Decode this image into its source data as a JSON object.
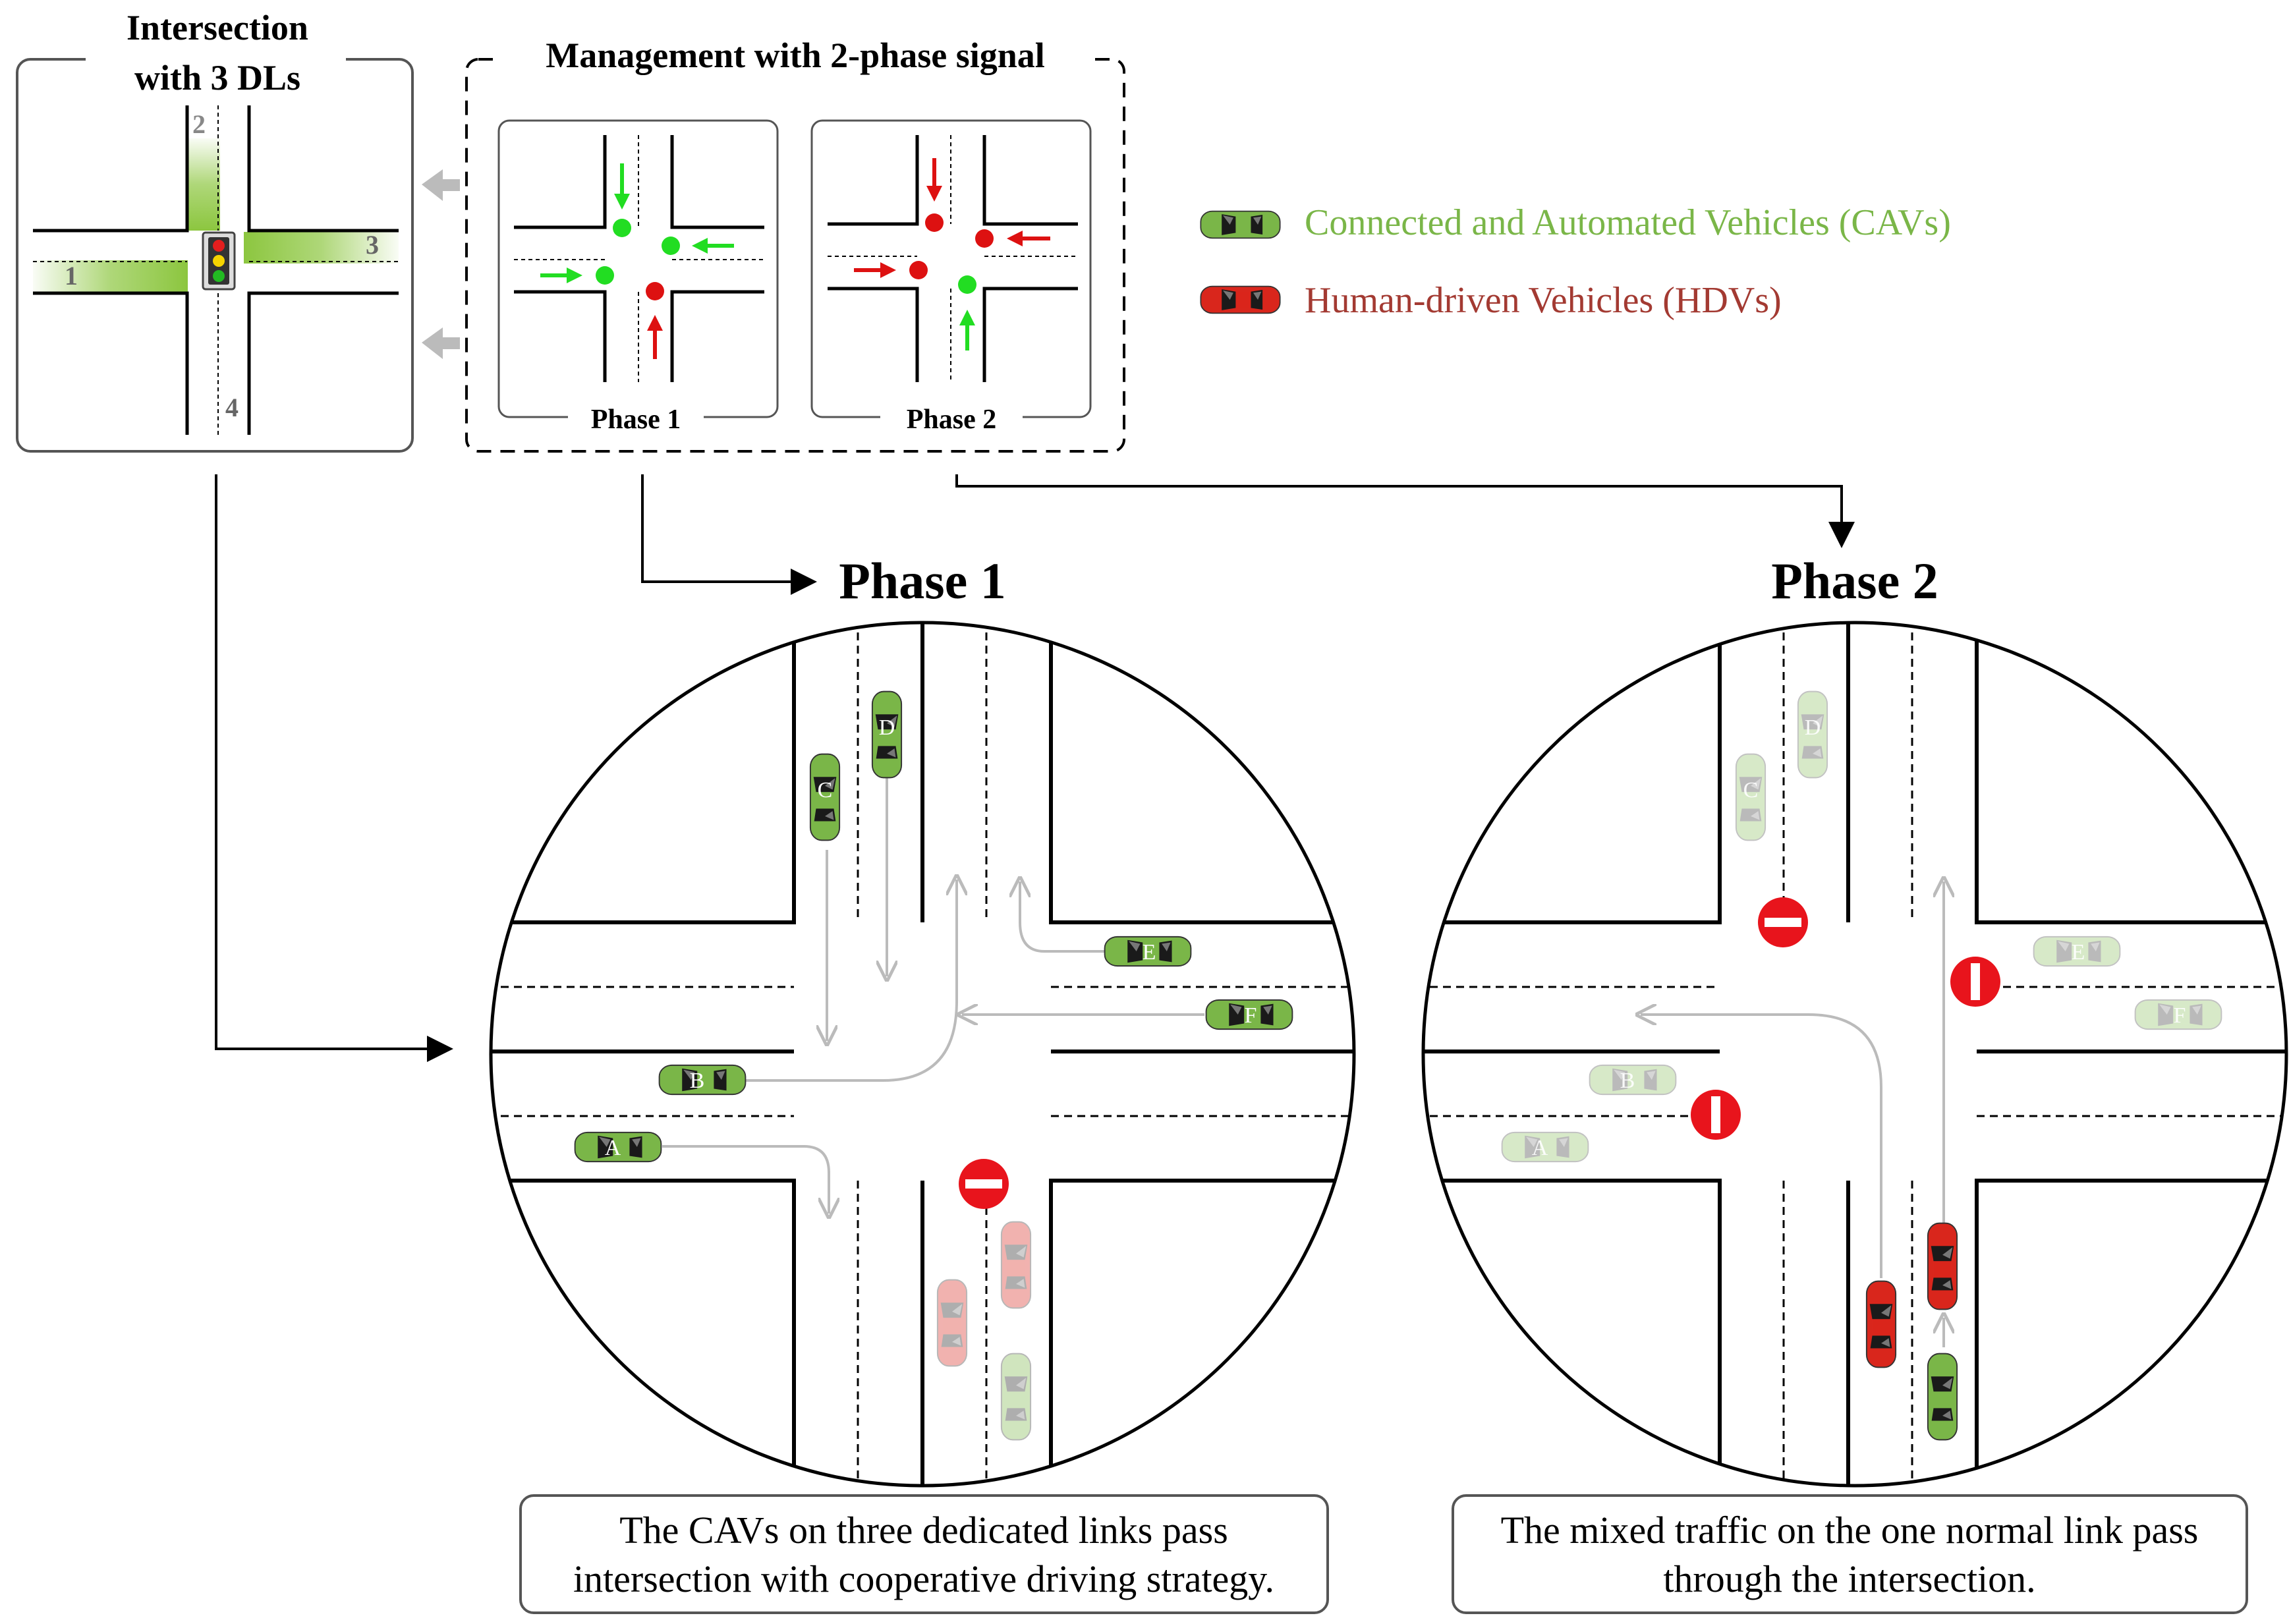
{
  "overview": {
    "title_line1": "Intersection",
    "title_line2": "with 3 DLs",
    "link_labels": [
      "1",
      "2",
      "3",
      "4"
    ]
  },
  "management": {
    "title": "Management with 2-phase signal",
    "phase1_label": "Phase 1",
    "phase2_label": "Phase 2"
  },
  "legend": {
    "cav_label": "Connected and Automated Vehicles (CAVs)",
    "hdv_label": "Human-driven Vehicles (HDVs)",
    "cav_color": "#7ab648",
    "hdv_color": "#d9261c"
  },
  "phase1": {
    "heading": "Phase 1",
    "caption_line1": "The CAVs on three dedicated links pass",
    "caption_line2": "intersection with cooperative driving strategy.",
    "vehicle_labels": [
      "A",
      "B",
      "C",
      "D",
      "E",
      "F"
    ]
  },
  "phase2": {
    "heading": "Phase 2",
    "caption_line1": "The mixed traffic on the one normal link pass",
    "caption_line2": "through the intersection.",
    "vehicle_labels": [
      "A",
      "B",
      "C",
      "D",
      "E",
      "F"
    ]
  },
  "colors": {
    "signal_green": "#22dd22",
    "signal_red": "#dd1111",
    "no_entry_red": "#e8141c",
    "lane_green": "#8cc63f"
  }
}
